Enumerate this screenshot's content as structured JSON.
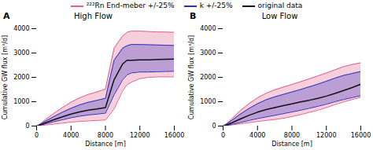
{
  "chart_data": [
    {
      "type": "line",
      "title": "High Flow",
      "annotations": [
        "A"
      ],
      "xlabel": "Distance [m]",
      "ylabel": "Cumulative GW flux [m³/d]",
      "xlim": [
        0,
        16000
      ],
      "ylim": [
        0,
        4000
      ],
      "xticks": [
        0,
        4000,
        8000,
        12000,
        16000
      ],
      "yticks": [
        0,
        1000,
        2000,
        3000,
        4000
      ],
      "x": [
        0,
        200,
        500,
        1000,
        2000,
        3000,
        4000,
        5000,
        6000,
        7000,
        8000,
        9000,
        10000,
        10500,
        11000,
        12000,
        13000,
        14000,
        15000,
        16000
      ],
      "series": [
        {
          "name": "²²²Rn End-meber +/-25%",
          "type": "band",
          "color": "#e06090",
          "upper": [
            0,
            40,
            110,
            260,
            520,
            760,
            980,
            1160,
            1300,
            1400,
            1520,
            3200,
            3700,
            3850,
            3900,
            3900,
            3880,
            3870,
            3860,
            3850
          ],
          "lower": [
            0,
            10,
            20,
            40,
            80,
            120,
            160,
            190,
            210,
            230,
            250,
            700,
            1450,
            1700,
            1800,
            1950,
            2000,
            2020,
            2020,
            2020
          ]
        },
        {
          "name": "k +/-25%",
          "type": "band",
          "color": "#3030c0",
          "upper": [
            0,
            30,
            85,
            195,
            390,
            570,
            730,
            870,
            975,
            1055,
            1140,
            2700,
            3200,
            3300,
            3350,
            3350,
            3340,
            3330,
            3320,
            3310
          ],
          "lower": [
            0,
            15,
            40,
            85,
            175,
            260,
            340,
            405,
            455,
            490,
            530,
            1280,
            1900,
            2100,
            2180,
            2220,
            2220,
            2230,
            2240,
            2250
          ]
        },
        {
          "name": "original data",
          "type": "line",
          "color": "#111111",
          "values": [
            0,
            20,
            60,
            130,
            260,
            380,
            490,
            580,
            650,
            700,
            760,
            1900,
            2550,
            2700,
            2700,
            2720,
            2720,
            2730,
            2740,
            2750
          ]
        }
      ]
    },
    {
      "type": "line",
      "title": "Low Flow",
      "annotations": [
        "B"
      ],
      "xlabel": "Distance [m]",
      "ylabel": "Cumulative GW flux [m³/d]",
      "xlim": [
        0,
        16000
      ],
      "ylim": [
        0,
        4000
      ],
      "xticks": [
        0,
        4000,
        8000,
        12000,
        16000
      ],
      "yticks": [
        0,
        1000,
        2000,
        3000,
        4000
      ],
      "x": [
        0,
        200,
        500,
        1000,
        2000,
        3000,
        4000,
        5000,
        6000,
        7000,
        8000,
        9000,
        10000,
        11000,
        12000,
        13000,
        14000,
        15000,
        16000
      ],
      "series": [
        {
          "name": "²²²Rn End-meber +/-25%",
          "type": "band",
          "color": "#e06090",
          "upper": [
            0,
            50,
            130,
            300,
            630,
            920,
            1160,
            1350,
            1490,
            1600,
            1710,
            1820,
            1940,
            2060,
            2180,
            2310,
            2440,
            2530,
            2600
          ],
          "lower": [
            0,
            10,
            20,
            45,
            90,
            140,
            190,
            230,
            270,
            320,
            390,
            470,
            560,
            650,
            760,
            880,
            990,
            1090,
            1180
          ]
        },
        {
          "name": "k +/-25%",
          "type": "band",
          "color": "#3030c0",
          "upper": [
            0,
            38,
            100,
            230,
            490,
            720,
            920,
            1080,
            1200,
            1300,
            1400,
            1500,
            1610,
            1720,
            1840,
            1970,
            2080,
            2160,
            2240
          ],
          "lower": [
            0,
            12,
            28,
            70,
            145,
            230,
            305,
            375,
            440,
            510,
            580,
            650,
            730,
            810,
            900,
            1000,
            1090,
            1170,
            1250
          ]
        },
        {
          "name": "original data",
          "type": "line",
          "color": "#111111",
          "values": [
            0,
            20,
            55,
            130,
            290,
            440,
            570,
            680,
            760,
            840,
            910,
            990,
            1060,
            1140,
            1230,
            1340,
            1460,
            1580,
            1720
          ]
        }
      ]
    }
  ]
}
